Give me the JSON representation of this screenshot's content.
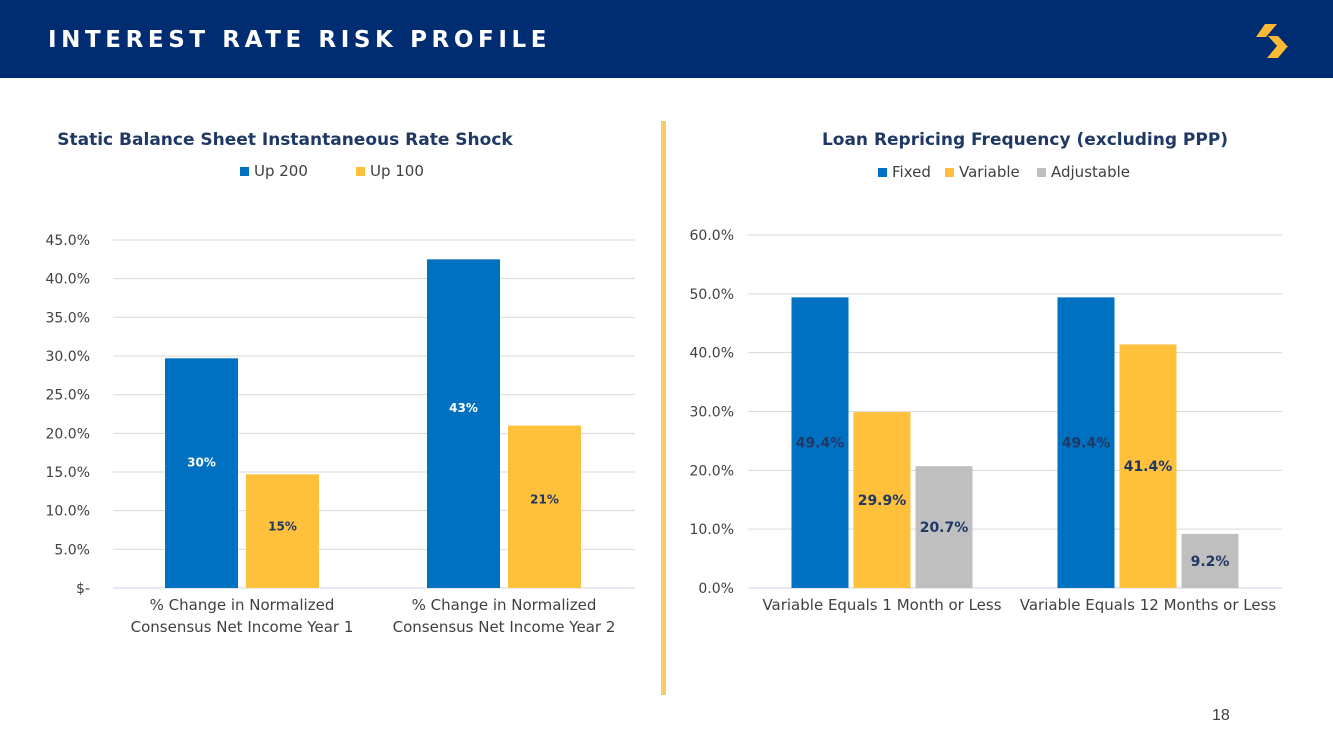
{
  "header": {
    "title": "INTEREST RATE RISK PROFILE"
  },
  "page": {
    "number": "18"
  },
  "colors": {
    "header_bg": "#002d72",
    "logo": "#fdb933",
    "divider": "#f7c96a",
    "blue": "#0070c0",
    "gold": "#ffc03c",
    "gray": "#bfbfbf",
    "navy_label": "#1f3864"
  },
  "chart_data": [
    {
      "type": "bar",
      "title": "Static Balance Sheet Instantaneous Rate Shock",
      "categories": [
        [
          "% Change in Normalized",
          "Consensus Net Income Year 1"
        ],
        [
          "% Change in Normalized",
          "Consensus Net Income Year 2"
        ]
      ],
      "series": [
        {
          "name": "Up 200",
          "color": "#0070c0",
          "values": [
            29.7,
            42.5
          ],
          "labels": [
            "30%",
            "43%"
          ],
          "label_color": "#ffffff"
        },
        {
          "name": "Up 100",
          "color": "#ffc03c",
          "values": [
            14.7,
            21.0
          ],
          "labels": [
            "15%",
            "21%"
          ],
          "label_color": "#1f3864"
        }
      ],
      "yticks": [
        "$-",
        "5.0%",
        "10.0%",
        "15.0%",
        "20.0%",
        "25.0%",
        "30.0%",
        "35.0%",
        "40.0%",
        "45.0%"
      ],
      "ylim": [
        0,
        45
      ],
      "ystep": 5,
      "legend": "top-center",
      "grid": true
    },
    {
      "type": "bar",
      "title": "Loan Repricing Frequency (excluding PPP)",
      "categories": [
        [
          "Variable Equals 1 Month or Less"
        ],
        [
          "Variable Equals 12 Months or Less"
        ]
      ],
      "series": [
        {
          "name": "Fixed",
          "color": "#0070c0",
          "values": [
            49.4,
            49.4
          ],
          "labels": [
            "49.4%",
            "49.4%"
          ],
          "label_color": "#1f3864"
        },
        {
          "name": "Variable",
          "color": "#ffc03c",
          "values": [
            29.9,
            41.4
          ],
          "labels": [
            "29.9%",
            "41.4%"
          ],
          "label_color": "#1f3864"
        },
        {
          "name": "Adjustable",
          "color": "#bfbfbf",
          "values": [
            20.7,
            9.2
          ],
          "labels": [
            "20.7%",
            "9.2%"
          ],
          "label_color": "#1f3864"
        }
      ],
      "yticks": [
        "0.0%",
        "10.0%",
        "20.0%",
        "30.0%",
        "40.0%",
        "50.0%",
        "60.0%"
      ],
      "ylim": [
        0,
        60
      ],
      "ystep": 10,
      "legend": "top-center",
      "grid": true
    }
  ]
}
